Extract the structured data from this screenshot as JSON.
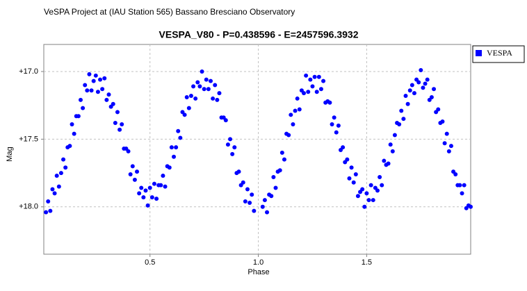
{
  "chart_data": {
    "type": "scatter",
    "header": "VeSPA Project at (IAU Station 565) Bassano Bresciano Observatory",
    "title": "VESPA_V80  -  P=0.438596  -  E=2457596.3932",
    "x_label": "Phase",
    "y_label": "Mag",
    "xlim": [
      0.01,
      1.98
    ],
    "ylim": [
      16.8,
      18.35
    ],
    "y_inverted": true,
    "xticks": [
      0.5,
      {
        "value": 1,
        "label": "1.0"
      },
      1.5
    ],
    "yticks": [
      {
        "value": 17,
        "label": "+17.0"
      },
      {
        "value": 17.5,
        "label": "+17.5"
      },
      {
        "value": 18,
        "label": "+18.0"
      }
    ],
    "grid": true,
    "legend": "top-right-outside",
    "series": [
      {
        "name": "VESPA",
        "color": "#0000ff",
        "x": [
          0.02,
          0.03,
          0.04,
          0.05,
          0.06,
          0.07,
          0.08,
          0.09,
          0.1,
          0.11,
          0.12,
          0.13,
          0.14,
          0.15,
          0.16,
          0.17,
          0.18,
          0.19,
          0.2,
          0.21,
          0.22,
          0.23,
          0.24,
          0.25,
          0.26,
          0.27,
          0.28,
          0.29,
          0.3,
          0.31,
          0.32,
          0.33,
          0.34,
          0.35,
          0.36,
          0.37,
          0.38,
          0.39,
          0.4,
          0.41,
          0.42,
          0.43,
          0.44,
          0.45,
          0.46,
          0.47,
          0.48,
          0.49,
          0.5,
          0.51,
          0.52,
          0.53,
          0.54,
          0.55,
          0.56,
          0.57,
          0.58,
          0.59,
          0.6,
          0.61,
          0.62,
          0.63,
          0.64,
          0.65,
          0.66,
          0.67,
          0.68,
          0.69,
          0.7,
          0.71,
          0.72,
          0.73,
          0.74,
          0.75,
          0.76,
          0.77,
          0.78,
          0.79,
          0.8,
          0.81,
          0.82,
          0.83,
          0.84,
          0.85,
          0.86,
          0.87,
          0.88,
          0.89,
          0.9,
          0.91,
          0.92,
          0.93,
          0.94,
          0.95,
          0.96,
          0.97,
          0.98,
          1.02,
          1.03,
          1.04,
          1.05,
          1.06,
          1.07,
          1.08,
          1.09,
          1.1,
          1.11,
          1.12,
          1.13,
          1.14,
          1.15,
          1.16,
          1.17,
          1.18,
          1.19,
          1.2,
          1.21,
          1.22,
          1.23,
          1.24,
          1.25,
          1.26,
          1.27,
          1.28,
          1.29,
          1.3,
          1.31,
          1.32,
          1.33,
          1.34,
          1.35,
          1.36,
          1.37,
          1.38,
          1.39,
          1.4,
          1.41,
          1.42,
          1.43,
          1.44,
          1.45,
          1.46,
          1.47,
          1.48,
          1.49,
          1.5,
          1.51,
          1.52,
          1.53,
          1.54,
          1.55,
          1.56,
          1.57,
          1.58,
          1.59,
          1.6,
          1.61,
          1.62,
          1.63,
          1.64,
          1.65,
          1.66,
          1.67,
          1.68,
          1.69,
          1.7,
          1.71,
          1.72,
          1.73,
          1.74,
          1.75,
          1.76,
          1.77,
          1.78,
          1.79,
          1.8,
          1.81,
          1.82,
          1.83,
          1.84,
          1.85,
          1.86,
          1.87,
          1.88,
          1.89,
          1.9,
          1.91,
          1.92,
          1.93,
          1.94,
          1.95,
          1.96,
          1.97,
          1.98
        ],
        "values": [
          18.04,
          17.96,
          18.03,
          17.87,
          17.9,
          17.77,
          17.85,
          17.75,
          17.65,
          17.71,
          17.56,
          17.55,
          17.39,
          17.46,
          17.33,
          17.33,
          17.21,
          17.27,
          17.1,
          17.14,
          17.02,
          17.14,
          17.07,
          17.03,
          17.15,
          17.06,
          17.13,
          17.05,
          17.21,
          17.17,
          17.26,
          17.24,
          17.38,
          17.3,
          17.43,
          17.39,
          17.57,
          17.57,
          17.59,
          17.76,
          17.7,
          17.8,
          17.74,
          17.9,
          17.86,
          17.93,
          17.88,
          17.99,
          17.86,
          17.93,
          17.83,
          17.94,
          17.84,
          17.84,
          17.77,
          17.85,
          17.7,
          17.71,
          17.56,
          17.63,
          17.56,
          17.44,
          17.49,
          17.3,
          17.32,
          17.19,
          17.27,
          17.18,
          17.11,
          17.2,
          17.08,
          17.11,
          17.0,
          17.13,
          17.06,
          17.13,
          17.07,
          17.2,
          17.1,
          17.21,
          17.16,
          17.34,
          17.34,
          17.36,
          17.54,
          17.5,
          17.61,
          17.56,
          17.75,
          17.74,
          17.84,
          17.82,
          17.96,
          17.87,
          17.97,
          17.91,
          18.03,
          18.0,
          17.95,
          18.04,
          17.91,
          17.92,
          17.78,
          17.86,
          17.74,
          17.73,
          17.6,
          17.65,
          17.46,
          17.47,
          17.32,
          17.39,
          17.29,
          17.2,
          17.28,
          17.14,
          17.16,
          17.03,
          17.15,
          17.06,
          17.11,
          17.04,
          17.15,
          17.04,
          17.13,
          17.07,
          17.23,
          17.22,
          17.23,
          17.39,
          17.34,
          17.45,
          17.4,
          17.58,
          17.56,
          17.67,
          17.65,
          17.79,
          17.71,
          17.82,
          17.76,
          17.92,
          17.89,
          17.87,
          18.0,
          17.9,
          17.95,
          17.84,
          17.95,
          17.86,
          17.88,
          17.78,
          17.84,
          17.66,
          17.69,
          17.68,
          17.54,
          17.59,
          17.47,
          17.38,
          17.39,
          17.29,
          17.35,
          17.18,
          17.24,
          17.14,
          17.1,
          17.16,
          17.06,
          17.08,
          16.99,
          17.12,
          17.09,
          17.06,
          17.21,
          17.19,
          17.13,
          17.3,
          17.28,
          17.38,
          17.37,
          17.53,
          17.46,
          17.59,
          17.55,
          17.74,
          17.76,
          17.84,
          17.84,
          17.9,
          17.84,
          18.01,
          17.99,
          18.0
        ]
      }
    ]
  }
}
